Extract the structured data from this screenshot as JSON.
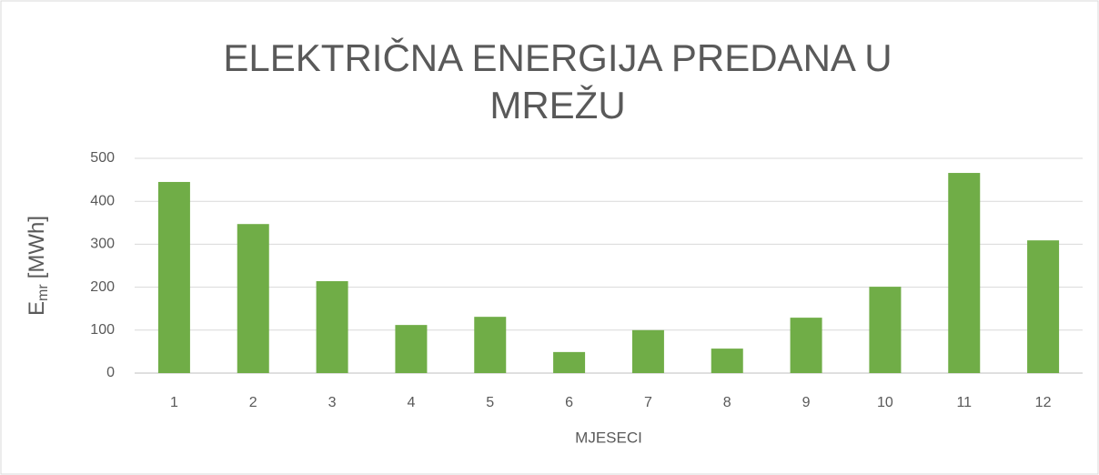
{
  "chart_data": {
    "type": "bar",
    "title": [
      "ELEKTRIČNA ENERGIJA PREDANA U",
      "MREŽU"
    ],
    "x_label": "MJESECI",
    "y_label": {
      "main": "E",
      "sub": "mr",
      "unit": "[MWh]"
    },
    "categories": [
      "1",
      "2",
      "3",
      "4",
      "5",
      "6",
      "7",
      "8",
      "9",
      "10",
      "11",
      "12"
    ],
    "values": [
      445,
      347,
      214,
      112,
      131,
      49,
      100,
      57,
      129,
      201,
      466,
      309
    ],
    "color": "#70ad47",
    "ylim": [
      0,
      500
    ],
    "yticks": [
      0,
      100,
      200,
      300,
      400,
      500
    ],
    "grid": true
  }
}
